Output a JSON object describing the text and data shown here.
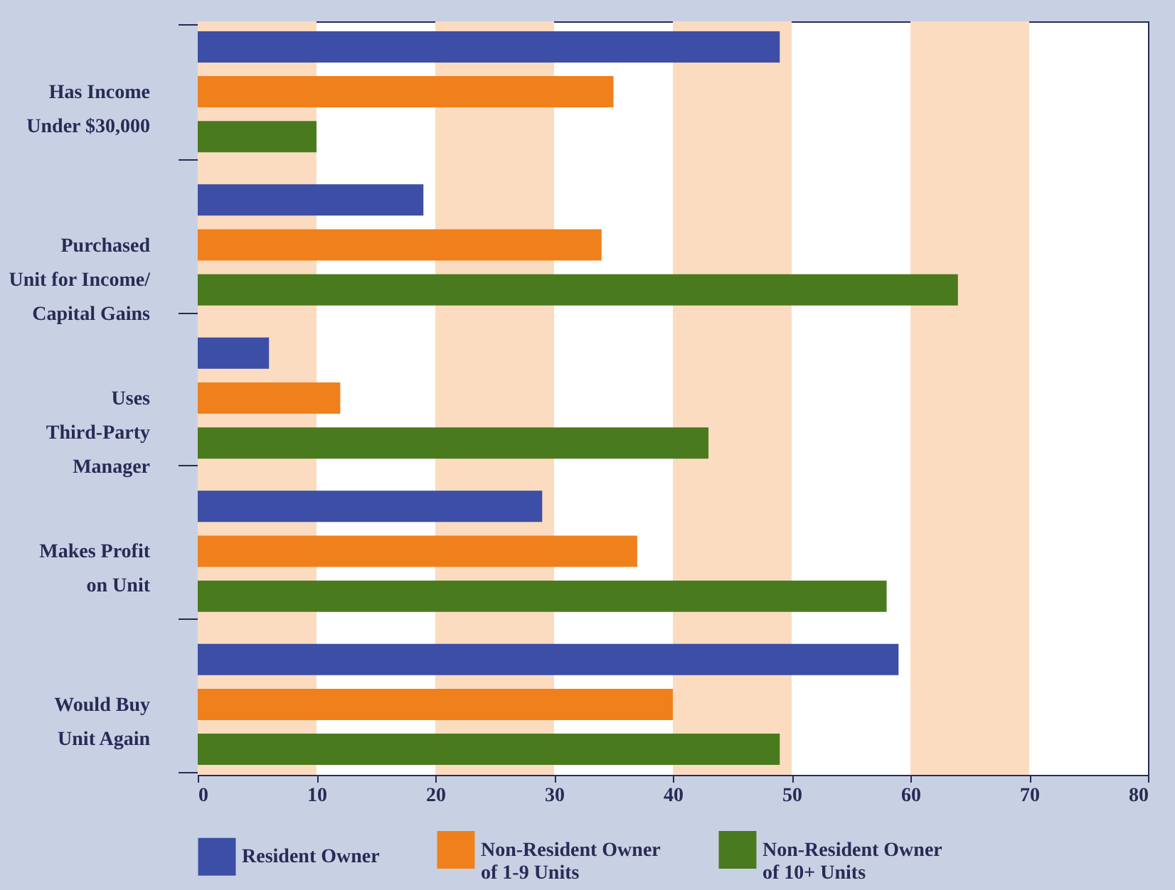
{
  "chart_data": {
    "type": "bar",
    "orientation": "horizontal",
    "categories": [
      "Has Income\nUnder $30,000",
      "Purchased\nUnit for Income/\nCapital Gains",
      "Uses\nThird-Party\nManager",
      "Makes Profit\non Unit",
      "Would Buy\nUnit Again"
    ],
    "series": [
      {
        "name": "Resident Owner",
        "color": "#3d4ea6",
        "values": [
          49,
          19,
          6,
          29,
          59
        ]
      },
      {
        "name": "Non-Resident Owner\nof 1-9 Units",
        "color": "#f0801c",
        "values": [
          35,
          34,
          12,
          37,
          40
        ]
      },
      {
        "name": "Non-Resident Owner\nof 10+ Units",
        "color": "#4a7a1e",
        "values": [
          10,
          64,
          43,
          58,
          49
        ]
      }
    ],
    "xlim": [
      0,
      80
    ],
    "xticks": [
      0,
      10,
      20,
      30,
      40,
      50,
      60,
      70,
      80
    ],
    "bands": [
      {
        "axis": "x",
        "from": 0,
        "to": 10,
        "color": "#fbdcc0"
      },
      {
        "axis": "x",
        "from": 20,
        "to": 30,
        "color": "#fbdcc0"
      },
      {
        "axis": "x",
        "from": 40,
        "to": 50,
        "color": "#fbdcc0"
      },
      {
        "axis": "x",
        "from": 60,
        "to": 70,
        "color": "#fbdcc0"
      }
    ],
    "grid": false,
    "legend": "bottom"
  }
}
